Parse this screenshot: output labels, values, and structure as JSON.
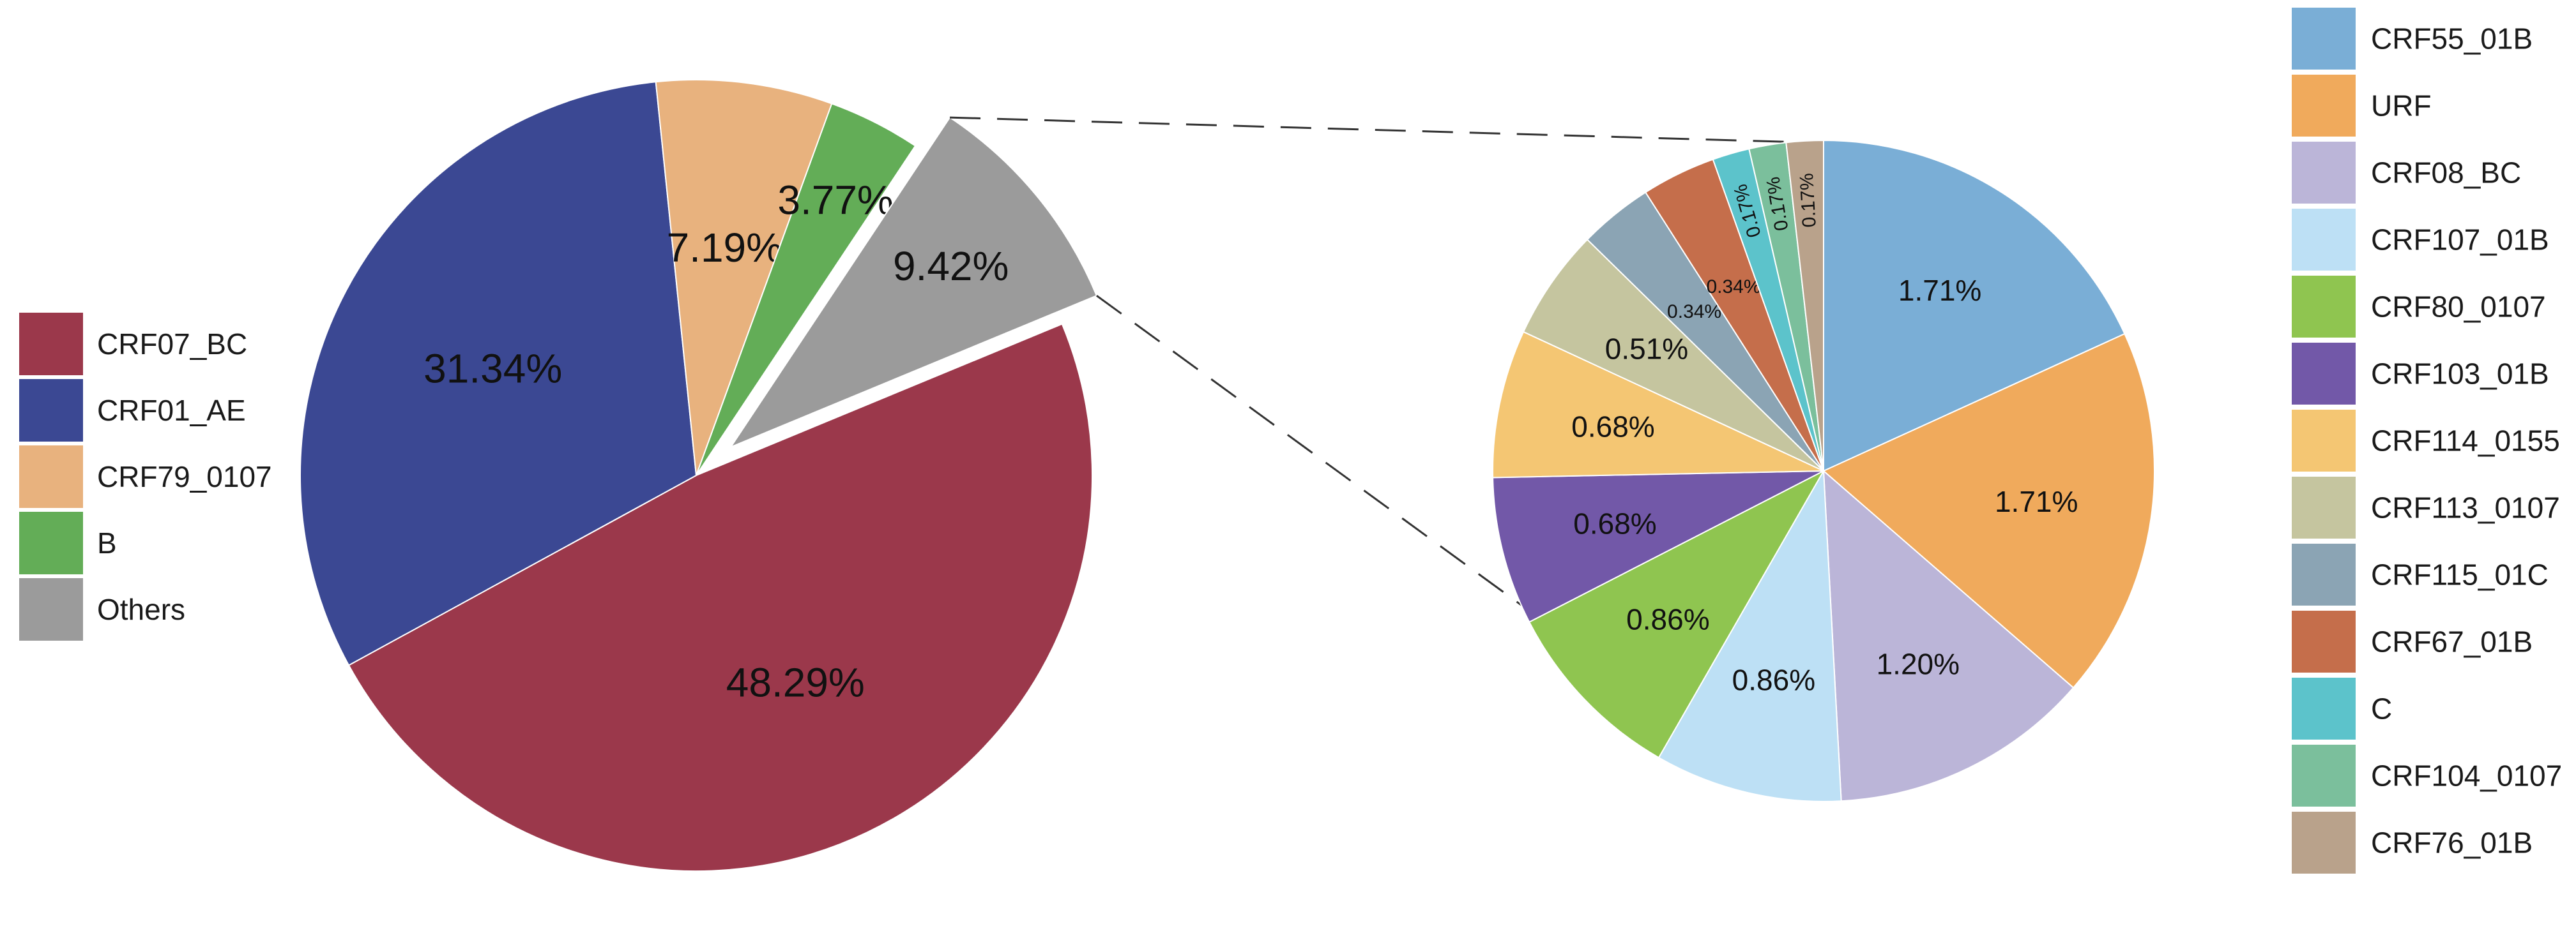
{
  "chart_data": [
    {
      "type": "pie",
      "slices": [
        {
          "label": "CRF07_BC",
          "value": 48.29,
          "value_label": "48.29%",
          "color": "#9b384b"
        },
        {
          "label": "CRF01_AE",
          "value": 31.34,
          "value_label": "31.34%",
          "color": "#3b4893"
        },
        {
          "label": "CRF79_0107",
          "value": 7.19,
          "value_label": "7.19%",
          "color": "#e8b27e"
        },
        {
          "label": "B",
          "value": 3.77,
          "value_label": "3.77%",
          "color": "#63ad57"
        },
        {
          "label": "Others",
          "value": 9.42,
          "value_label": "9.42%",
          "color": "#9b9b9b",
          "exploded": true
        }
      ],
      "legend_position": "left"
    },
    {
      "type": "pie",
      "slices": [
        {
          "label": "CRF55_01B",
          "value": 1.71,
          "value_label": "1.71%",
          "color": "#7aaed6"
        },
        {
          "label": "URF",
          "value": 1.71,
          "value_label": "1.71%",
          "color": "#f0aa5c"
        },
        {
          "label": "CRF08_BC",
          "value": 1.2,
          "value_label": "1.20%",
          "color": "#bbb5d8"
        },
        {
          "label": "CRF107_01B",
          "value": 0.86,
          "value_label": "0.86%",
          "color": "#bde0f5"
        },
        {
          "label": "CRF80_0107",
          "value": 0.86,
          "value_label": "0.86%",
          "color": "#8fc550"
        },
        {
          "label": "CRF103_01B",
          "value": 0.68,
          "value_label": "0.68%",
          "color": "#7258a8"
        },
        {
          "label": "CRF114_0155",
          "value": 0.68,
          "value_label": "0.68%",
          "color": "#f4c673"
        },
        {
          "label": "CRF113_0107",
          "value": 0.51,
          "value_label": "0.51%",
          "color": "#c5c59f"
        },
        {
          "label": "CRF115_01C",
          "value": 0.34,
          "value_label": "0.34%",
          "color": "#8ba4b4"
        },
        {
          "label": "CRF67_01B",
          "value": 0.34,
          "value_label": "0.34%",
          "color": "#c56e4b"
        },
        {
          "label": "C",
          "value": 0.17,
          "value_label": "0.17%",
          "color": "#5cc3cb"
        },
        {
          "label": "CRF104_0107",
          "value": 0.17,
          "value_label": "0.17%",
          "color": "#7bbf9c"
        },
        {
          "label": "CRF76_01B",
          "value": 0.17,
          "value_label": "0.17%",
          "color": "#b9a28b"
        }
      ],
      "legend_position": "right"
    }
  ]
}
